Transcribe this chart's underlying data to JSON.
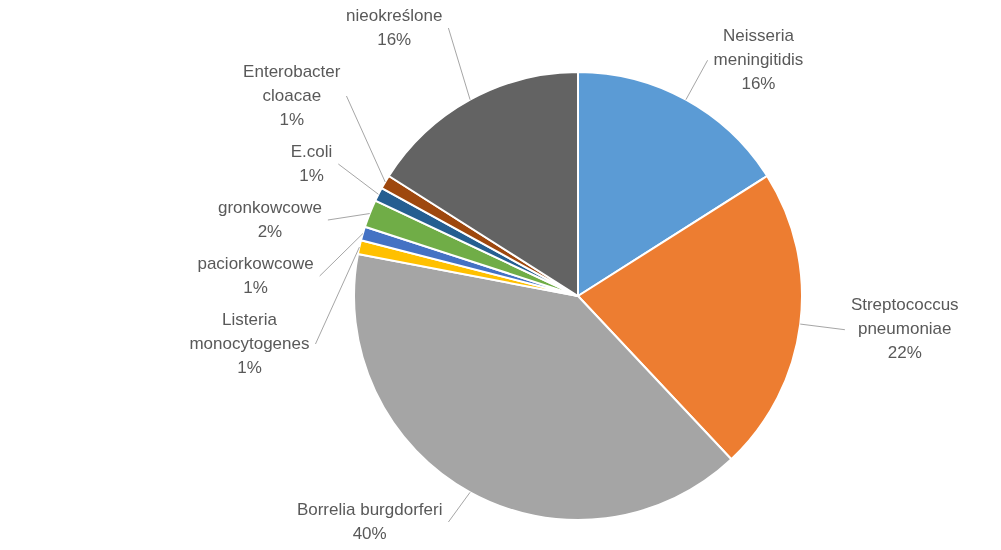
{
  "chart_data": {
    "type": "pie",
    "categories": [
      "Neisseria meningitidis",
      "Streptococcus pneumoniae",
      "Borrelia burgdorferi",
      "Listeria monocytogenes",
      "paciorkowcowe",
      "gronkowcowe",
      "E.coli",
      "Enterobacter cloacae",
      "nieokreślone"
    ],
    "values": [
      16,
      22,
      40,
      1,
      1,
      2,
      1,
      1,
      16
    ],
    "value_labels": [
      "16%",
      "22%",
      "40%",
      "1%",
      "1%",
      "2%",
      "1%",
      "1%",
      "16%"
    ],
    "colors": [
      "#5b9bd5",
      "#ed7d31",
      "#a5a5a5",
      "#ffc000",
      "#4472c4",
      "#70ad47",
      "#255e91",
      "#9e480e",
      "#636363"
    ],
    "legend": false
  }
}
